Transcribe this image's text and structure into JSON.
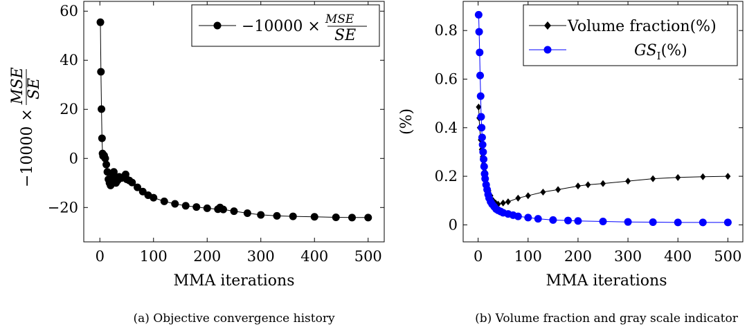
{
  "chart_data": [
    {
      "type": "line",
      "caption": "(a) Objective convergence history",
      "xlabel": "MMA iterations",
      "ylabel": "−10000 × MSE/SE",
      "xlim": [
        -30,
        530
      ],
      "ylim": [
        -34,
        64
      ],
      "xticks": [
        0,
        100,
        200,
        300,
        400,
        500
      ],
      "yticks": [
        -20,
        0,
        20,
        40,
        60
      ],
      "xtick_labels": [
        "0",
        "100",
        "200",
        "300",
        "400",
        "500"
      ],
      "ytick_labels": [
        "−20",
        "0",
        "20",
        "40",
        "60"
      ],
      "legend_position": "top-right",
      "grid": false,
      "series": [
        {
          "name": "−10000 × MSE/SE",
          "color": "#000000",
          "marker": "circle",
          "x": [
            1,
            2,
            3,
            4,
            5,
            6,
            8,
            10,
            12,
            14,
            16,
            18,
            20,
            22,
            24,
            26,
            28,
            30,
            33,
            36,
            40,
            45,
            48,
            50,
            55,
            60,
            70,
            80,
            90,
            100,
            120,
            140,
            160,
            180,
            200,
            220,
            224,
            230,
            250,
            275,
            300,
            330,
            360,
            400,
            440,
            470,
            500
          ],
          "y": [
            55.5,
            35.3,
            20.1,
            8.2,
            2.0,
            1.0,
            1.2,
            0.0,
            -2.5,
            -5.5,
            -8.5,
            -10.0,
            -11.0,
            -9.5,
            -7.0,
            -5.5,
            -8.5,
            -10.0,
            -9.0,
            -7.5,
            -8.0,
            -7.5,
            -6.5,
            -8.5,
            -9.0,
            -9.8,
            -11.8,
            -13.5,
            -15.0,
            -16.0,
            -17.5,
            -18.5,
            -19.3,
            -19.8,
            -20.3,
            -20.7,
            -20.0,
            -20.8,
            -21.5,
            -22.3,
            -23.0,
            -23.4,
            -23.6,
            -23.8,
            -24.0,
            -24.1,
            -24.1
          ]
        }
      ]
    },
    {
      "type": "line",
      "caption": "(b) Volume fraction and gray scale indicator",
      "xlabel": "MMA iterations",
      "ylabel": "(%)",
      "xlim": [
        -30,
        530
      ],
      "ylim": [
        -0.07,
        0.92
      ],
      "xticks": [
        0,
        100,
        200,
        300,
        400,
        500
      ],
      "yticks": [
        0,
        0.2,
        0.4,
        0.6,
        0.8
      ],
      "xtick_labels": [
        "0",
        "100",
        "200",
        "300",
        "400",
        "500"
      ],
      "ytick_labels": [
        "0",
        "0.2",
        "0.4",
        "0.6",
        "0.8"
      ],
      "legend_position": "top-right",
      "grid": false,
      "series": [
        {
          "name": "Volume fraction(%)",
          "color": "#000000",
          "marker": "diamond",
          "x": [
            1,
            2,
            3,
            5,
            7,
            9,
            11,
            13,
            15,
            18,
            21,
            25,
            30,
            35,
            40,
            50,
            60,
            80,
            100,
            130,
            160,
            200,
            220,
            250,
            300,
            350,
            400,
            450,
            500
          ],
          "y": [
            0.485,
            0.44,
            0.4,
            0.35,
            0.31,
            0.28,
            0.25,
            0.22,
            0.19,
            0.16,
            0.14,
            0.12,
            0.1,
            0.09,
            0.085,
            0.09,
            0.095,
            0.11,
            0.12,
            0.135,
            0.145,
            0.16,
            0.165,
            0.17,
            0.18,
            0.19,
            0.195,
            0.198,
            0.2
          ]
        },
        {
          "name": "GS_I(%)",
          "color": "#0000ff",
          "marker": "circle",
          "x": [
            1,
            2,
            3,
            4,
            5,
            6,
            7,
            8,
            9,
            10,
            11,
            12,
            13,
            14,
            16,
            18,
            20,
            22,
            25,
            28,
            32,
            36,
            40,
            45,
            50,
            60,
            70,
            80,
            100,
            120,
            150,
            180,
            200,
            250,
            300,
            350,
            400,
            450,
            500
          ],
          "y": [
            0.865,
            0.795,
            0.71,
            0.615,
            0.53,
            0.445,
            0.4,
            0.36,
            0.33,
            0.3,
            0.27,
            0.24,
            0.21,
            0.19,
            0.165,
            0.145,
            0.125,
            0.11,
            0.095,
            0.085,
            0.075,
            0.065,
            0.06,
            0.055,
            0.05,
            0.045,
            0.04,
            0.035,
            0.03,
            0.025,
            0.02,
            0.018,
            0.016,
            0.014,
            0.012,
            0.011,
            0.01,
            0.01,
            0.01
          ]
        }
      ]
    }
  ]
}
